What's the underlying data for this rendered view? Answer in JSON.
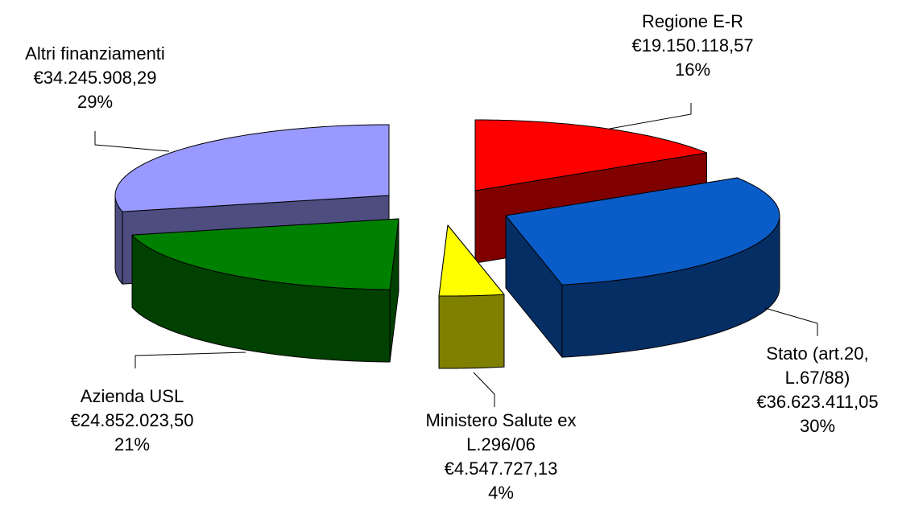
{
  "chart_data": {
    "type": "pie3d",
    "categories": [
      "Regione E-R",
      "Stato (art.20, L.67/88)",
      "Ministero Salute ex L.296/06",
      "Azienda USL",
      "Altri finanziamenti"
    ],
    "values": [
      19150118.57,
      36623411.05,
      4547727.13,
      24852023.5,
      34245908.29
    ],
    "value_labels": [
      "€19.150.118,57",
      "€36.623.411,05",
      "€4.547.727,13",
      "€24.852.023,50",
      "€34.245.908,29"
    ],
    "percent_labels": [
      "16%",
      "30%",
      "4%",
      "21%",
      "29%"
    ],
    "colors": [
      "#ff0000",
      "#0a5cc8",
      "#ffff00",
      "#008000",
      "#9999ff"
    ]
  }
}
